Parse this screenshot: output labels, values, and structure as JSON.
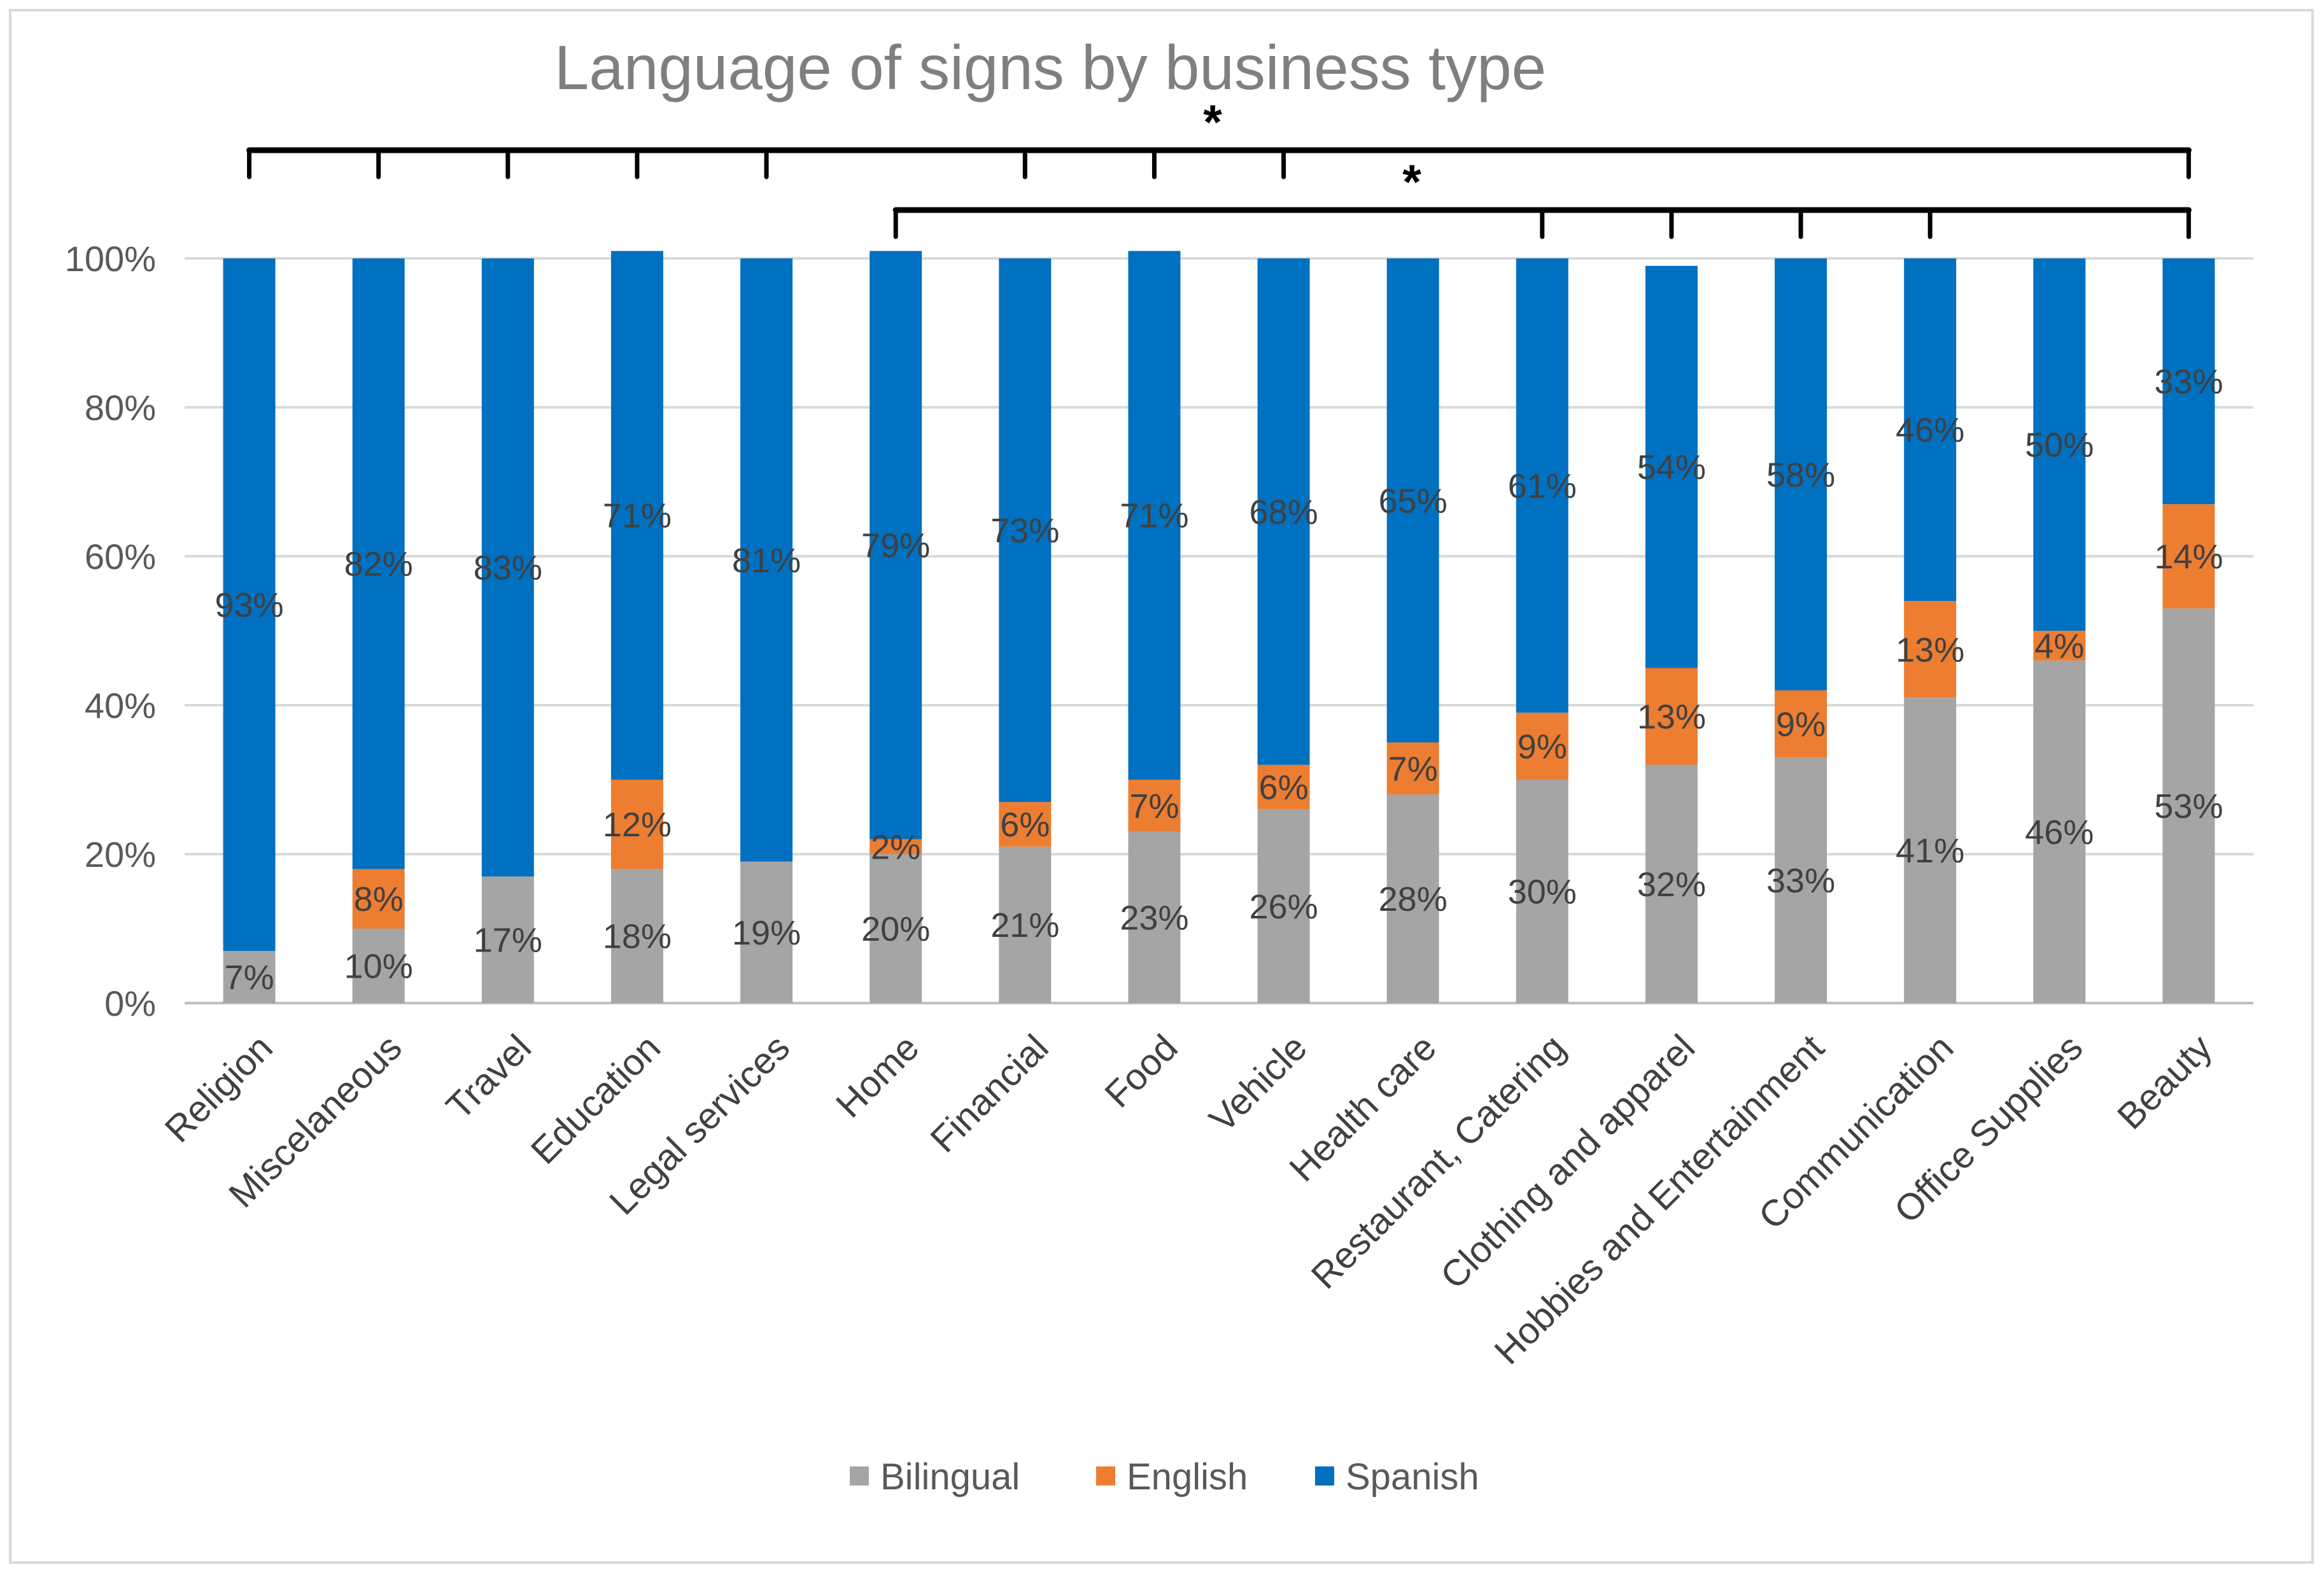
{
  "chart_data": {
    "type": "bar",
    "stacked": true,
    "title": "Language of signs by business type",
    "categories": [
      "Religion",
      "Miscelaneous",
      "Travel",
      "Education",
      "Legal services",
      "Home",
      "Financial",
      "Food",
      "Vehicle",
      "Health care",
      "Restaurant, Catering",
      "Clothing and apparel",
      "Hobbies and Entertainment",
      "Communication",
      "Office Supplies",
      "Beauty"
    ],
    "series": [
      {
        "name": "Bilingual",
        "color": "#a5a5a5",
        "values": [
          7,
          10,
          17,
          18,
          19,
          20,
          21,
          23,
          26,
          28,
          30,
          32,
          33,
          41,
          46,
          53
        ],
        "labels": [
          "7%",
          "10%",
          "17%",
          "18%",
          "19%",
          "20%",
          "21%",
          "23%",
          "26%",
          "28%",
          "30%",
          "32%",
          "33%",
          "41%",
          "46%",
          "53%"
        ]
      },
      {
        "name": "English",
        "color": "#ed7d31",
        "values": [
          0,
          8,
          0,
          12,
          0,
          2,
          6,
          7,
          6,
          7,
          9,
          13,
          9,
          13,
          4,
          14
        ],
        "labels": [
          "",
          "8%",
          "",
          "12%",
          "",
          "2%",
          "6%",
          "7%",
          "6%",
          "7%",
          "9%",
          "13%",
          "9%",
          "13%",
          "4%",
          "14%"
        ]
      },
      {
        "name": "Spanish",
        "color": "#0070c0",
        "values": [
          93,
          82,
          83,
          71,
          81,
          79,
          73,
          71,
          68,
          65,
          61,
          54,
          58,
          46,
          50,
          33
        ],
        "labels": [
          "93%",
          "82%",
          "83%",
          "71%",
          "81%",
          "79%",
          "73%",
          "71%",
          "68%",
          "65%",
          "61%",
          "54%",
          "58%",
          "46%",
          "50%",
          "33%"
        ]
      }
    ],
    "ylim": [
      0,
      100
    ],
    "yticks": [
      "0%",
      "20%",
      "40%",
      "60%",
      "80%",
      "100%"
    ],
    "grid": true,
    "legend": "bottom-center",
    "annotations": [
      {
        "text": "*",
        "spans": [
          "Religion",
          "Beauty"
        ],
        "ticks": [
          "Religion",
          "Miscelaneous",
          "Travel",
          "Education",
          "Legal services",
          "Financial",
          "Food",
          "Vehicle",
          "Beauty"
        ]
      },
      {
        "text": "*",
        "spans": [
          "Home",
          "Beauty"
        ],
        "ticks": [
          "Home",
          "Restaurant, Catering",
          "Clothing and apparel",
          "Hobbies and Entertainment",
          "Communication",
          "Beauty"
        ]
      }
    ]
  }
}
